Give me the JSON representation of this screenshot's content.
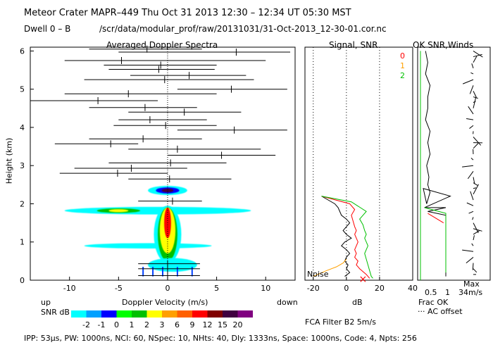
{
  "header": {
    "line1": "Meteor Crater  MAPR–449  Thu Oct 31 2013 12:30 – 12:34 UT 05:30 MST",
    "dwell": "Dwell  0 –  B",
    "path": "/scr/data/modular_prof/raw/20131031/31-Oct-2013_12-30-01.cor.nc"
  },
  "footer": "IPP: 53μs,  PW: 1000ns,  NCI: 60,  NSpec: 10,  NHts: 40,  Dly: 1333ns,  Space: 1000ns,  Code: 4,  Npts: 256",
  "colors": [
    "#00ffff",
    "#00a0ff",
    "#0000ff",
    "#00ff00",
    "#00c000",
    "#ffff00",
    "#ffa000",
    "#ff6000",
    "#ff0000",
    "#800000",
    "#400040",
    "#800080"
  ],
  "chart_data": [
    {
      "type": "heatmap",
      "title": "Averaged Doppler Spectra",
      "xlabel": "Doppler Velocity (m/s)",
      "ylabel": "Height (km)",
      "xlim": [
        -14,
        13
      ],
      "ylim": [
        0,
        6.1
      ],
      "xticks": [
        -10,
        -5,
        0,
        5,
        10
      ],
      "yticks": [
        0,
        1,
        2,
        3,
        4,
        5,
        6
      ],
      "up_label": "up",
      "down_label": "down",
      "noise_bars": [
        {
          "h": 6.05,
          "lo": -8.0,
          "hi": 3.5,
          "c": -2.1
        },
        {
          "h": 5.97,
          "lo": -5.0,
          "hi": 12.5,
          "c": 7.0
        },
        {
          "h": 5.75,
          "lo": -10.5,
          "hi": 10.0,
          "c": -4.7
        },
        {
          "h": 5.63,
          "lo": -6.5,
          "hi": 5.0,
          "c": -0.7
        },
        {
          "h": 5.52,
          "lo": -6.0,
          "hi": 4.8,
          "c": -0.9
        },
        {
          "h": 5.36,
          "lo": -3.8,
          "hi": 8.0,
          "c": 2.2
        },
        {
          "h": 5.25,
          "lo": -8.5,
          "hi": 8.8,
          "c": -0.3
        },
        {
          "h": 5.0,
          "lo": 1.0,
          "hi": 12.2,
          "c": 6.5
        },
        {
          "h": 4.88,
          "lo": -10.5,
          "hi": 5.0,
          "c": -4.0
        },
        {
          "h": 4.7,
          "lo": -14.0,
          "hi": -1.0,
          "c": -7.1
        },
        {
          "h": 4.52,
          "lo": -8.0,
          "hi": 3.0,
          "c": -2.3
        },
        {
          "h": 4.4,
          "lo": -4.0,
          "hi": 7.5,
          "c": 1.7
        },
        {
          "h": 4.2,
          "lo": -5.0,
          "hi": 4.0,
          "c": -1.8
        },
        {
          "h": 4.05,
          "lo": -5.5,
          "hi": 5.0,
          "c": -0.2
        },
        {
          "h": 3.93,
          "lo": 1.0,
          "hi": 12.2,
          "c": 6.8
        },
        {
          "h": 3.7,
          "lo": -8.0,
          "hi": 3.5,
          "c": -2.5
        },
        {
          "h": 3.57,
          "lo": -11.5,
          "hi": -3.0,
          "c": -5.8
        },
        {
          "h": 3.43,
          "lo": -4.0,
          "hi": 9.5,
          "c": 1.0
        },
        {
          "h": 3.27,
          "lo": 0.0,
          "hi": 11.0,
          "c": 5.5
        },
        {
          "h": 3.07,
          "lo": -6.0,
          "hi": 6.0,
          "c": 0.3
        },
        {
          "h": 2.93,
          "lo": -9.5,
          "hi": 2.0,
          "c": -3.7
        },
        {
          "h": 2.8,
          "lo": -11.0,
          "hi": 0.0,
          "c": -5.1
        },
        {
          "h": 2.65,
          "lo": -4.0,
          "hi": 6.5,
          "c": 0.2
        },
        {
          "h": 2.07,
          "lo": -3.0,
          "hi": 3.5,
          "c": 0.5
        },
        {
          "h": 0.43,
          "lo": -3.0,
          "hi": 3.3,
          "c": 0.0
        },
        {
          "h": 0.3,
          "lo": -3.0,
          "hi": 3.3,
          "c": 0.0
        },
        {
          "h": 0.12,
          "lo": -3.0,
          "hi": 3.3,
          "c": 0.0
        }
      ],
      "colorbar": {
        "label": "SNR dB",
        "ticks": [
          "-2",
          "-1",
          "0",
          "1",
          "2",
          "3",
          "6",
          "9",
          "12",
          "15",
          "20"
        ]
      }
    },
    {
      "type": "line",
      "title": "Signal, SNR",
      "xlabel": "dB",
      "xlim": [
        -25,
        40
      ],
      "xticks": [
        -20,
        0,
        20,
        40
      ],
      "noise_label": "Noise",
      "legend": [
        "0",
        "1",
        "2"
      ],
      "legend_colors": [
        "#ff0000",
        "#ffa000",
        "#00c000"
      ],
      "series": [
        {
          "name": "0",
          "color": "#000000",
          "x": [
            -15,
            -7,
            -5,
            -3,
            0,
            2,
            0,
            -2,
            0,
            3,
            -1,
            -3,
            0,
            2,
            0,
            -1,
            1,
            0,
            2,
            -1
          ],
          "y": [
            2.2,
            2.0,
            1.9,
            1.7,
            1.6,
            1.5,
            1.4,
            1.3,
            1.2,
            1.1,
            1.0,
            0.9,
            0.8,
            0.7,
            0.6,
            0.5,
            0.4,
            0.3,
            0.2,
            0.1
          ]
        },
        {
          "name": "1",
          "color": "#ff0000",
          "x": [
            -15,
            2,
            5,
            3,
            4,
            5,
            6,
            5,
            6,
            7,
            6,
            5,
            6,
            5,
            7,
            6,
            8,
            12,
            14
          ],
          "y": [
            2.2,
            2.0,
            1.85,
            1.7,
            1.55,
            1.4,
            1.3,
            1.2,
            1.1,
            1.0,
            0.9,
            0.8,
            0.7,
            0.6,
            0.5,
            0.4,
            0.3,
            0.15,
            0.05
          ]
        },
        {
          "name": "2",
          "color": "#00c000",
          "x": [
            -15,
            3,
            12,
            8,
            10,
            11,
            12,
            11,
            12,
            13,
            12,
            11,
            12,
            13,
            14,
            15,
            16
          ],
          "y": [
            2.2,
            2.05,
            1.8,
            1.6,
            1.45,
            1.3,
            1.2,
            1.1,
            1.0,
            0.9,
            0.8,
            0.7,
            0.55,
            0.4,
            0.25,
            0.1,
            0.05
          ]
        },
        {
          "name": "noise",
          "color": "#ffa000",
          "x": [
            -20,
            -12,
            -6,
            -2,
            0
          ],
          "y": [
            0.1,
            0.25,
            0.35,
            0.45,
            0.55
          ]
        }
      ]
    },
    {
      "type": "line",
      "title": "OK SNR,Winds",
      "xticks": [
        "0.5",
        "1"
      ],
      "frac_label": "Frac OK",
      "ac_label": "··· AC offset",
      "max_label": "Max",
      "max_value": "34m/s",
      "filter_label": "FCA Filter B2  5m/s"
    }
  ]
}
